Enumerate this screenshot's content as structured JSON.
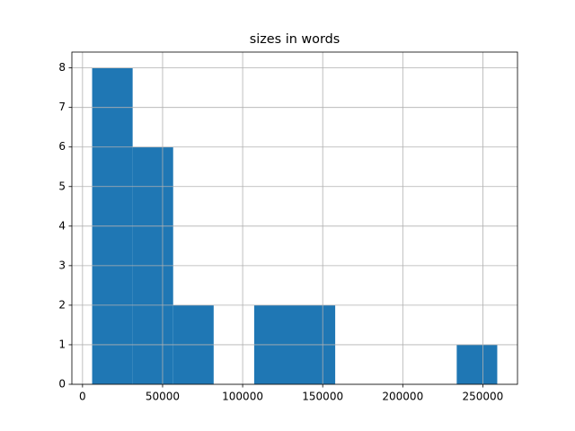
{
  "chart_data": {
    "type": "histogram",
    "title": "sizes in words",
    "bins": [
      6000,
      31300,
      56600,
      81900,
      107200,
      132500,
      157800,
      183100,
      208400,
      233700,
      259000
    ],
    "counts": [
      8,
      6,
      2,
      0,
      2,
      2,
      0,
      0,
      0,
      1
    ],
    "color": "#1f77b4",
    "xlim": [
      -6650,
      271650
    ],
    "xticks": [
      0,
      50000,
      100000,
      150000,
      200000,
      250000
    ],
    "ylim": [
      0,
      8.4
    ],
    "yticks": [
      0,
      1,
      2,
      3,
      4,
      5,
      6,
      7,
      8
    ],
    "grid": true
  }
}
